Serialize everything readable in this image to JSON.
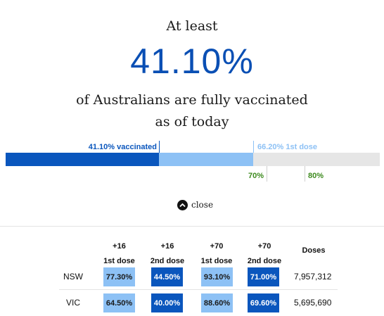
{
  "hero": {
    "pre_text": "At least",
    "percent": "41.10%",
    "post_line1": "of Australians are fully vaccinated",
    "post_line2": "as of today"
  },
  "progress": {
    "fully_vaccinated_label": "41.10% vaccinated",
    "first_dose_label": "66.20% 1st dose",
    "fully_vaccinated_pct": 41.1,
    "first_dose_pct": 66.2,
    "target_70_label": "70%",
    "target_80_label": "80%",
    "colors": {
      "fully": "#0a56bd",
      "first": "#8dc1f5",
      "track": "#e6e6e6",
      "target": "#3d8a1e"
    }
  },
  "close_button": {
    "label": "close",
    "icon": "chevron-up-icon"
  },
  "table": {
    "headers": [
      {
        "line1": "+16",
        "line2": "1st dose"
      },
      {
        "line1": "+16",
        "line2": "2nd dose"
      },
      {
        "line1": "+70",
        "line2": "1st dose"
      },
      {
        "line1": "+70",
        "line2": "2nd dose"
      },
      {
        "line1": "",
        "line2": "Doses"
      }
    ],
    "rows": [
      {
        "state": "NSW",
        "values": [
          "77.30%",
          "44.50%",
          "93.10%",
          "71.00%"
        ],
        "doses": "7,957,312"
      },
      {
        "state": "VIC",
        "values": [
          "64.50%",
          "40.00%",
          "88.60%",
          "69.60%"
        ],
        "doses": "5,695,690"
      }
    ]
  }
}
